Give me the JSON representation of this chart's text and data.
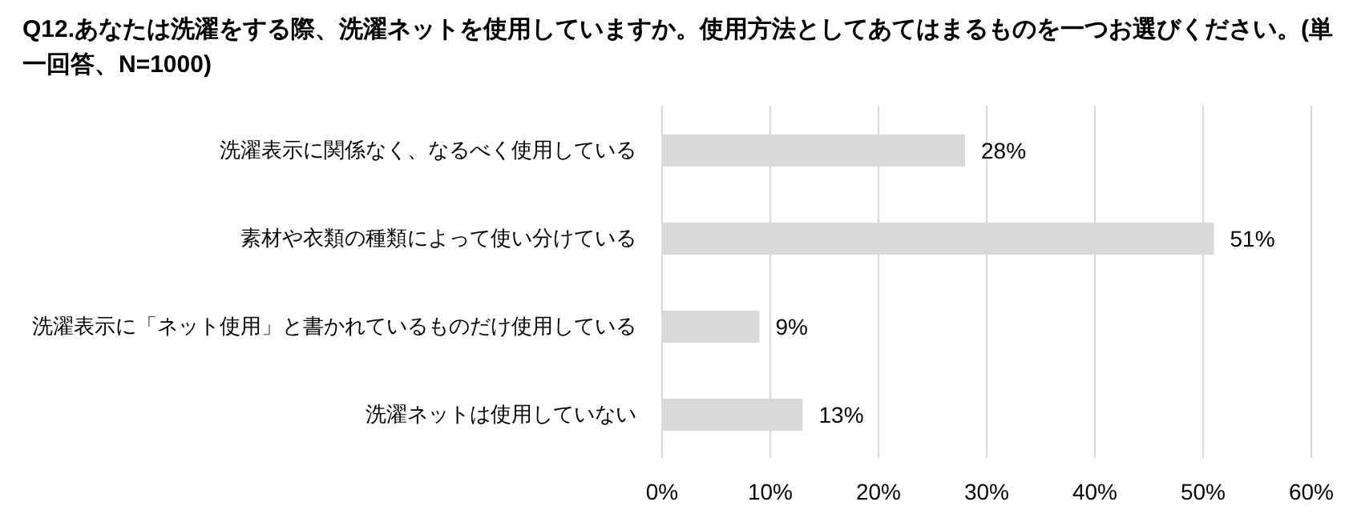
{
  "chart_data": {
    "type": "bar",
    "orientation": "horizontal",
    "title": "Q12.あなたは洗濯をする際、洗濯ネットを使用していますか。使用方法としてあてはまるものを一つお選びください。(単一回答、N=1000)",
    "categories": [
      "洗濯表示に関係なく、なるべく使用している",
      "素材や衣類の種類によって使い分けている",
      "洗濯表示に「ネット使用」と書かれているものだけ使用している",
      "洗濯ネットは使用していない"
    ],
    "values": [
      28,
      51,
      9,
      13
    ],
    "value_labels": [
      "28%",
      "51%",
      "9%",
      "13%"
    ],
    "color": "#d9d9d9",
    "xlim": [
      0,
      60
    ],
    "xticks": [
      {
        "value": 0,
        "label": "0%"
      },
      {
        "value": 10,
        "label": "10%"
      },
      {
        "value": 20,
        "label": "20%"
      },
      {
        "value": 30,
        "label": "30%"
      },
      {
        "value": 40,
        "label": "40%"
      },
      {
        "value": 50,
        "label": "50%"
      },
      {
        "value": 60,
        "label": "60%"
      }
    ],
    "grid": "x",
    "legend": false
  }
}
